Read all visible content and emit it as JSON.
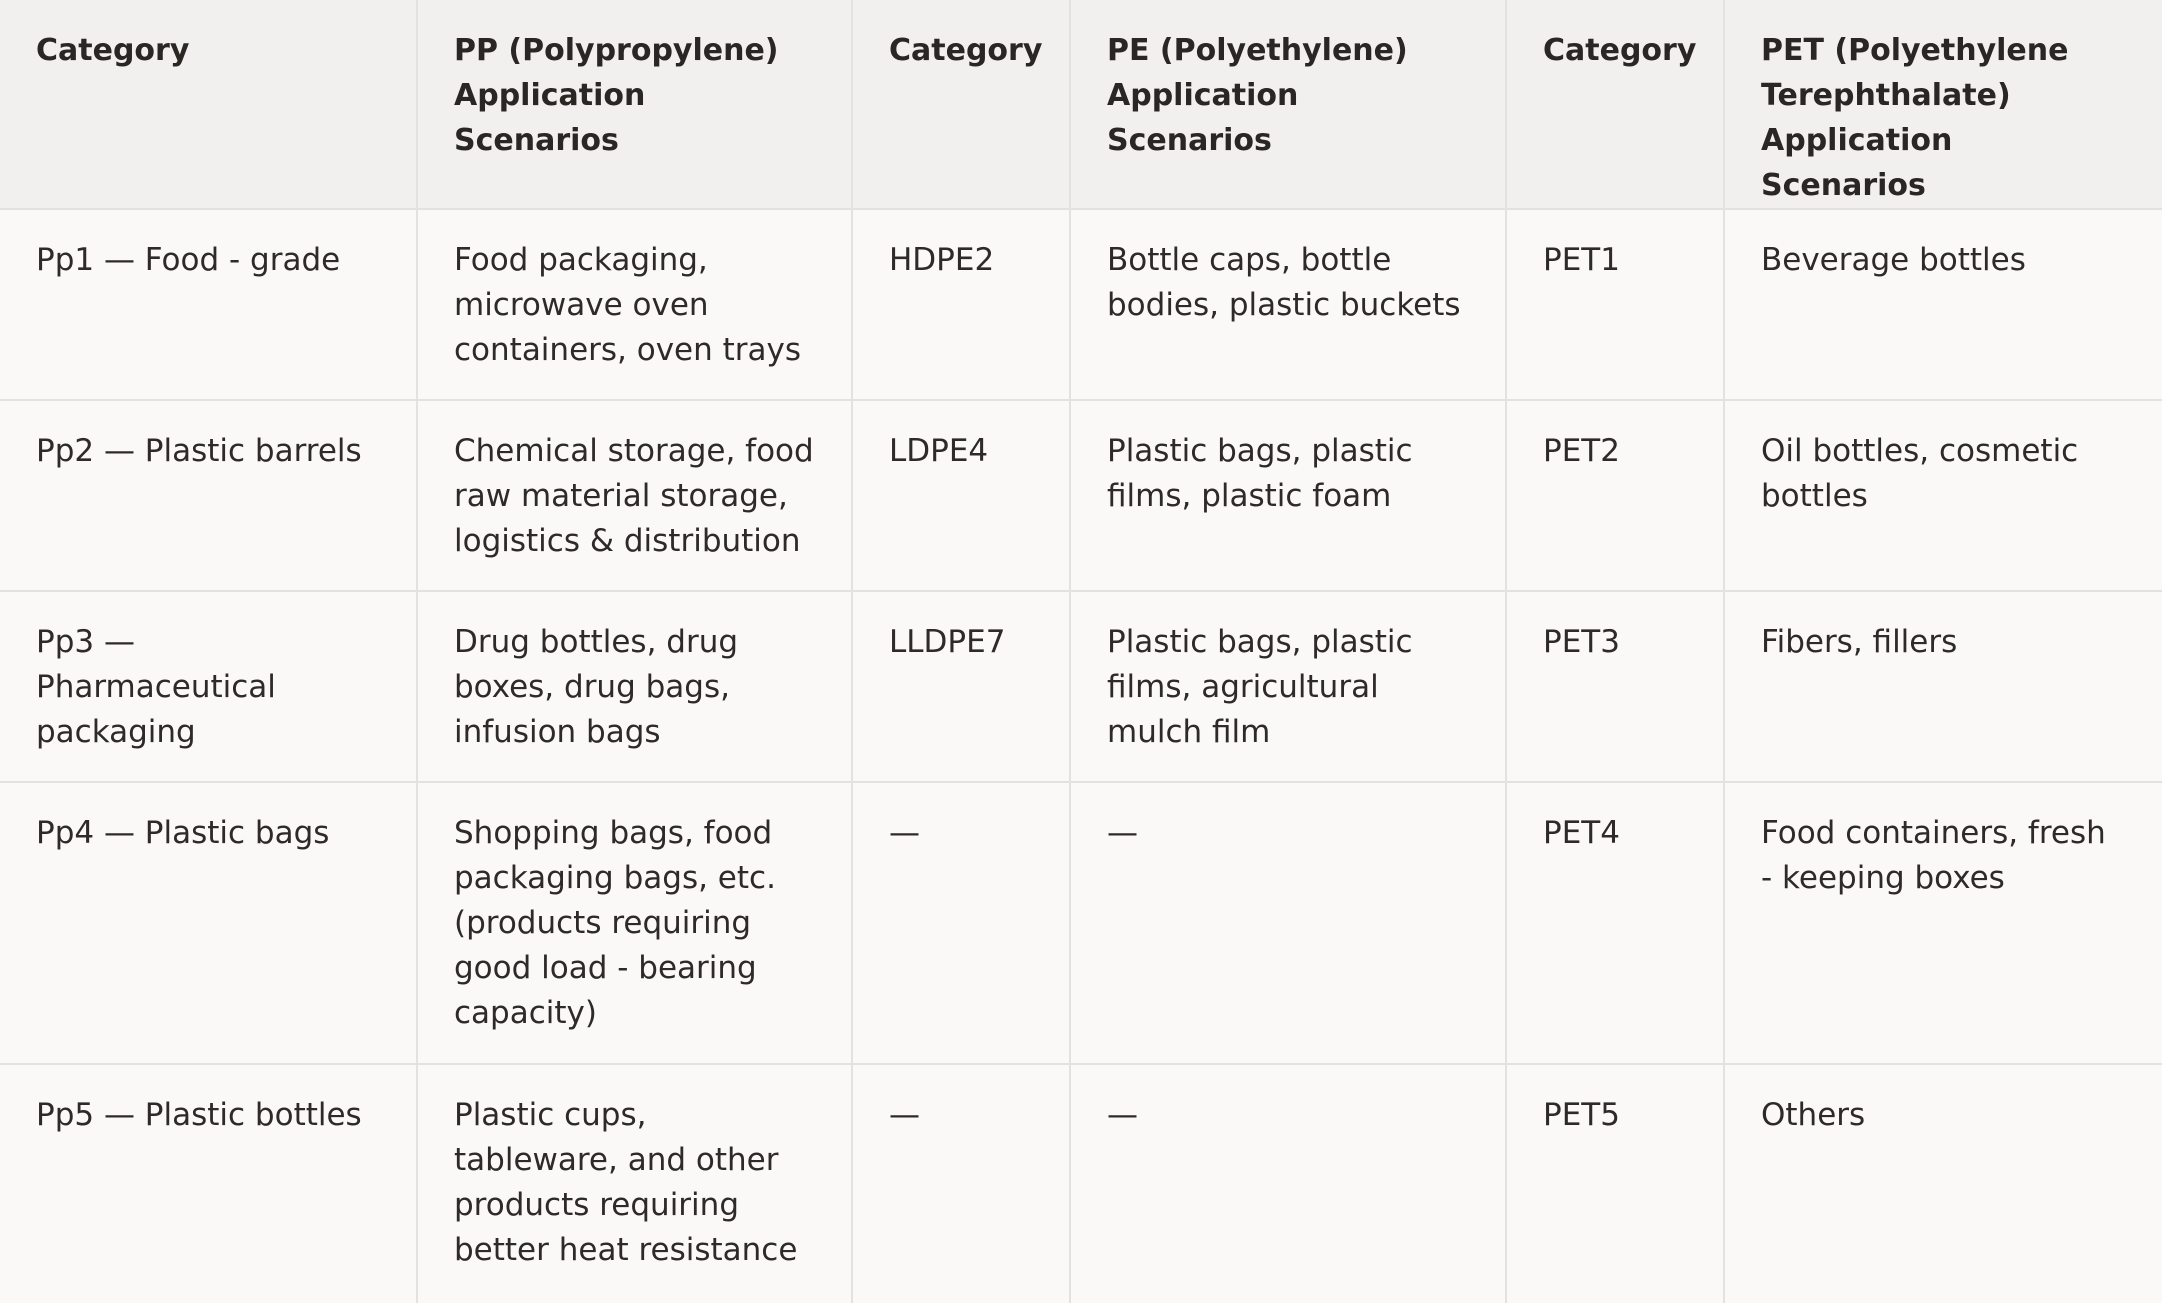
{
  "headers": [
    "Category",
    "PP (Polypropylene) Application Scenarios",
    "Category",
    "PE (Polyethylene) Application Scenarios",
    "Category",
    "PET (Polyethylene Terephthalate) Application Scenarios"
  ],
  "rows": [
    [
      "Pp1 — Food - grade",
      "Food packaging, microwave oven containers, oven trays",
      "HDPE2",
      "Bottle caps, bottle bodies, plastic buckets",
      "PET1",
      "Beverage bottles"
    ],
    [
      "Pp2 — Plastic barrels",
      "Chemical storage, food raw material storage, logistics & distribution",
      "LDPE4",
      "Plastic bags, plastic films, plastic foam",
      "PET2",
      "Oil bottles, cosmetic bottles"
    ],
    [
      "Pp3 — Pharmaceutical packaging",
      "Drug bottles, drug boxes, drug bags, infusion bags",
      "LLDPE7",
      "Plastic bags, plastic films, agricultural mulch film",
      "PET3",
      "Fibers, fillers"
    ],
    [
      "Pp4 — Plastic bags",
      "Shopping bags, food packaging bags, etc. (products requiring good load - bearing capacity)",
      "—",
      "—",
      "PET4",
      "Food containers, fresh - keeping boxes"
    ],
    [
      "Pp5 — Plastic bottles",
      "Plastic cups, tableware, and other products requiring better heat resistance",
      "—",
      "—",
      "PET5",
      "Others"
    ]
  ]
}
